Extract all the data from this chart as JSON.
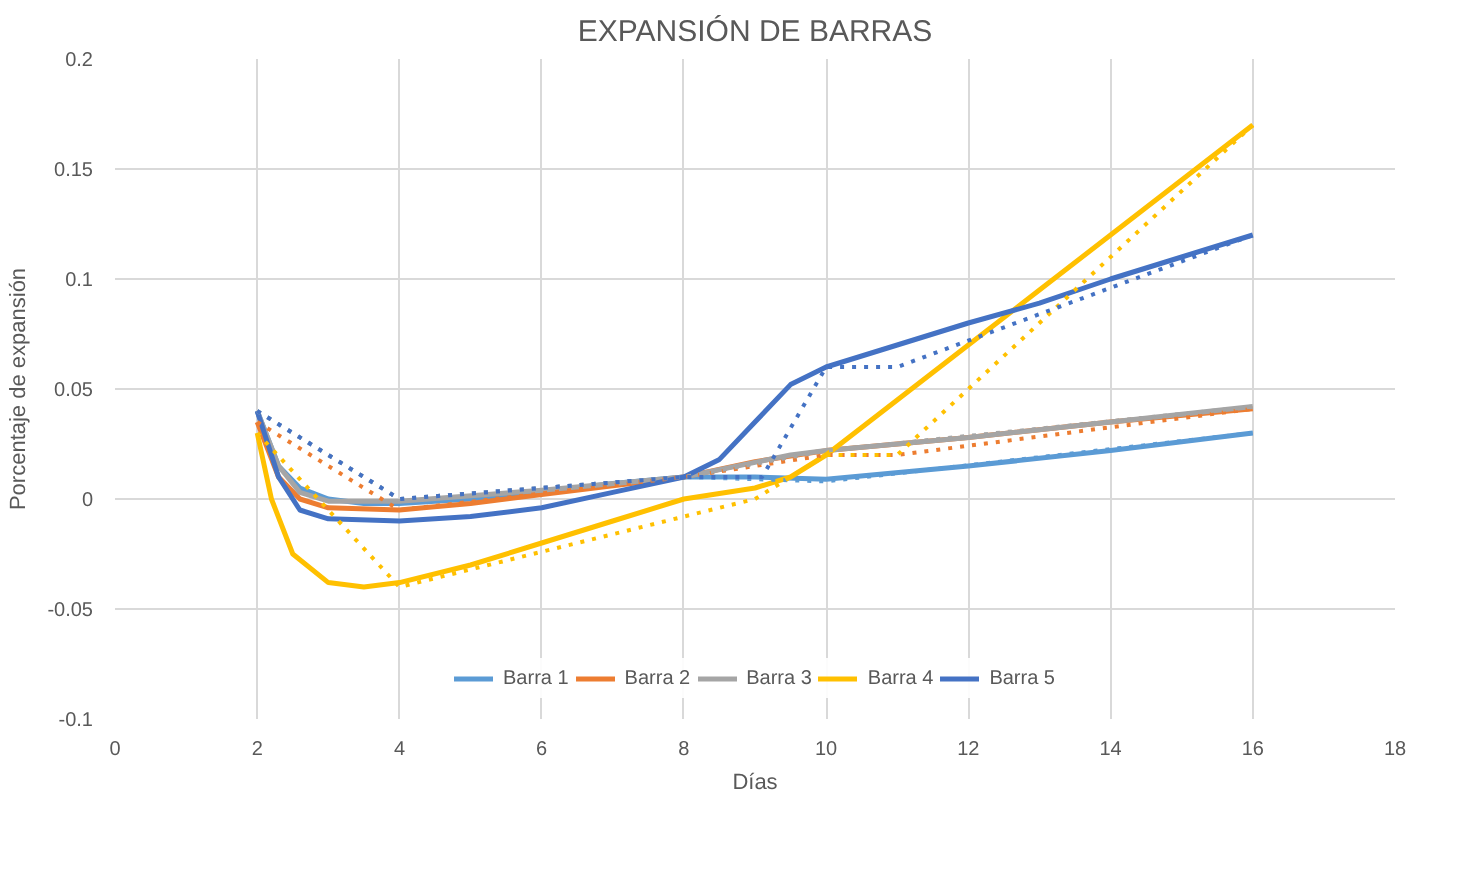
{
  "chart_data": {
    "type": "line",
    "title": "EXPANSIÓN DE BARRAS",
    "xlabel": "Días",
    "ylabel": "Porcentaje de expansión",
    "xlim": [
      0,
      18
    ],
    "xticks": [
      0,
      2,
      4,
      6,
      8,
      10,
      12,
      14,
      16,
      18
    ],
    "ylim": [
      -0.1,
      0.2
    ],
    "yticks": [
      -0.1,
      -0.05,
      0,
      0.05,
      0.1,
      0.15,
      0.2
    ],
    "grid": true,
    "legend": "bottom",
    "marker": "none",
    "series": [
      {
        "name": "Barra 1",
        "color": "#5b9bd5",
        "line_style": "solid",
        "x": [
          2,
          2.3,
          2.6,
          3,
          3.5,
          4,
          5,
          6,
          7,
          8,
          9,
          10,
          12,
          14,
          16
        ],
        "values": [
          0.04,
          0.015,
          0.005,
          0.0,
          -0.002,
          -0.002,
          0.0,
          0.003,
          0.007,
          0.01,
          0.01,
          0.009,
          0.015,
          0.022,
          0.03
        ]
      },
      {
        "name": "Barra 2",
        "color": "#ed7d31",
        "line_style": "solid",
        "x": [
          2,
          2.3,
          2.6,
          3,
          4,
          5,
          6,
          7,
          8,
          9,
          10,
          12,
          14,
          16
        ],
        "values": [
          0.035,
          0.01,
          0.0,
          -0.004,
          -0.005,
          -0.002,
          0.002,
          0.006,
          0.01,
          0.017,
          0.022,
          0.028,
          0.035,
          0.041
        ]
      },
      {
        "name": "Barra 3",
        "color": "#a5a5a5",
        "line_style": "solid",
        "x": [
          2,
          2.3,
          2.6,
          3,
          4,
          6,
          8,
          9.5,
          10,
          12,
          14,
          16
        ],
        "values": [
          0.04,
          0.015,
          0.003,
          -0.001,
          -0.001,
          0.004,
          0.01,
          0.02,
          0.022,
          0.028,
          0.035,
          0.042
        ]
      },
      {
        "name": "Barra 4",
        "color": "#ffc000",
        "line_style": "solid",
        "x": [
          2,
          2.2,
          2.5,
          3,
          3.5,
          4,
          5,
          6,
          7,
          8,
          9,
          9.5,
          10,
          11,
          12,
          13,
          14,
          15,
          16
        ],
        "values": [
          0.03,
          0.0,
          -0.025,
          -0.038,
          -0.04,
          -0.038,
          -0.03,
          -0.02,
          -0.01,
          0.0,
          0.005,
          0.01,
          0.02,
          0.045,
          0.07,
          0.095,
          0.12,
          0.145,
          0.17
        ]
      },
      {
        "name": "Barra 5",
        "color": "#4472c4",
        "line_style": "solid",
        "x": [
          2,
          2.3,
          2.6,
          3,
          4,
          5,
          6,
          7,
          8,
          8.5,
          9,
          9.5,
          10,
          11,
          12,
          13,
          14,
          15,
          16
        ],
        "values": [
          0.04,
          0.01,
          -0.005,
          -0.009,
          -0.01,
          -0.008,
          -0.004,
          0.003,
          0.01,
          0.018,
          0.035,
          0.052,
          0.06,
          0.07,
          0.08,
          0.089,
          0.1,
          0.11,
          0.12
        ]
      },
      {
        "color": "#5b9bd5",
        "line_style": "dotted",
        "x": [
          2,
          4,
          8,
          10,
          16
        ],
        "values": [
          0.04,
          0.0,
          0.01,
          0.008,
          0.03
        ]
      },
      {
        "color": "#ed7d31",
        "line_style": "dotted",
        "x": [
          2,
          4,
          8,
          10,
          11,
          16
        ],
        "values": [
          0.035,
          -0.005,
          0.01,
          0.02,
          0.02,
          0.041
        ]
      },
      {
        "color": "#a5a5a5",
        "line_style": "dotted",
        "x": [
          2,
          4,
          8,
          10,
          16
        ],
        "values": [
          0.04,
          0.0,
          0.01,
          0.022,
          0.042
        ]
      },
      {
        "color": "#ffc000",
        "line_style": "dotted",
        "x": [
          2,
          4,
          9,
          10,
          11,
          16
        ],
        "values": [
          0.03,
          -0.04,
          0.0,
          0.02,
          0.02,
          0.17
        ]
      },
      {
        "color": "#4472c4",
        "line_style": "dotted",
        "x": [
          2,
          4,
          8,
          9.1,
          10,
          11,
          16
        ],
        "values": [
          0.04,
          0.0,
          0.01,
          0.01,
          0.06,
          0.06,
          0.12
        ]
      }
    ]
  }
}
